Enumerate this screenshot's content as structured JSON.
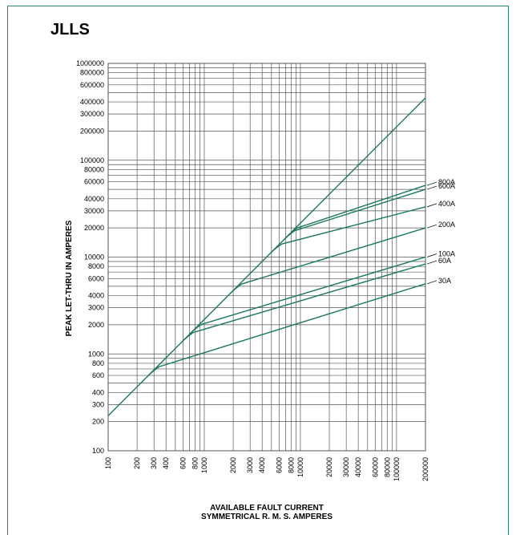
{
  "chart_data": {
    "type": "line",
    "title": "JLLS",
    "xlabel_line1": "AVAILABLE FAULT CURRENT",
    "xlabel_line2": "SYMMETRICAL  R. M. S.  AMPERES",
    "ylabel": "PEAK LET-THRU IN AMPERES",
    "xscale": "log",
    "yscale": "log",
    "xlim": [
      100,
      200000
    ],
    "ylim": [
      100,
      1000000
    ],
    "grid": true,
    "x_ticks": [
      100,
      200,
      300,
      400,
      600,
      800,
      1000,
      2000,
      3000,
      4000,
      6000,
      8000,
      10000,
      20000,
      30000,
      40000,
      60000,
      80000,
      100000,
      200000
    ],
    "x_tick_labels": [
      "100",
      "200",
      "300",
      "400",
      "600",
      "800",
      "1000",
      "2000",
      "3000",
      "4000",
      "6000",
      "8000",
      "10000",
      "20000",
      "30000",
      "40000",
      "60000",
      "80000",
      "100000",
      "200000"
    ],
    "y_ticks": [
      100,
      200,
      300,
      400,
      600,
      800,
      1000,
      2000,
      3000,
      4000,
      6000,
      8000,
      10000,
      20000,
      30000,
      40000,
      60000,
      80000,
      100000,
      200000,
      300000,
      400000,
      600000,
      800000,
      1000000
    ],
    "y_tick_labels": [
      "100",
      "200",
      "300",
      "400",
      "600",
      "800",
      "1000",
      "2000",
      "3000",
      "4000",
      "6000",
      "8000",
      "10000",
      "20000",
      "30000",
      "40000",
      "60000",
      "80000",
      "100000",
      "200000",
      "300000",
      "400000",
      "600000",
      "800000",
      "1000000"
    ],
    "reference_line": {
      "x": [
        100,
        200000
      ],
      "y": [
        230,
        440000
      ]
    },
    "series": [
      {
        "name": "800A",
        "x": [
          8000,
          200000
        ],
        "y": [
          19000,
          55000
        ]
      },
      {
        "name": "600A",
        "x": [
          7500,
          200000
        ],
        "y": [
          17500,
          50000
        ]
      },
      {
        "name": "400A",
        "x": [
          5500,
          200000
        ],
        "y": [
          12000,
          33000
        ]
      },
      {
        "name": "200A",
        "x": [
          2100,
          200000
        ],
        "y": [
          4600,
          20000
        ]
      },
      {
        "name": "100A",
        "x": [
          800,
          200000
        ],
        "y": [
          1800,
          10000
        ]
      },
      {
        "name": "60A",
        "x": [
          660,
          200000
        ],
        "y": [
          1400,
          8500
        ]
      },
      {
        "name": "30A",
        "x": [
          290,
          200000
        ],
        "y": [
          600,
          5300
        ]
      }
    ],
    "colors": {
      "line": "#1a7a56",
      "grid": "#555555",
      "frame": "#2a8a63"
    }
  }
}
